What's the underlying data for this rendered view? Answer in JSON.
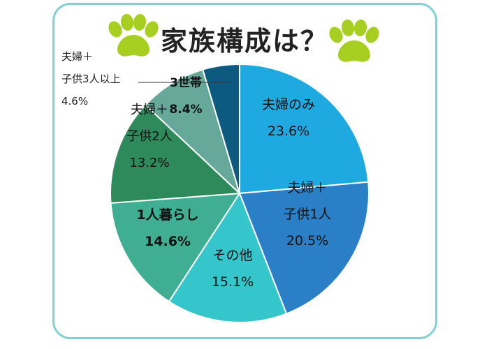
{
  "title": "家族構成は？",
  "icons": {
    "decoration": "paw-print-icon",
    "paw_color": "#a6cf22"
  },
  "chart_data": {
    "type": "pie",
    "title": "家族構成は？",
    "start_angle_deg": 0,
    "direction": "clockwise",
    "legend": "none",
    "slices": [
      {
        "label": [
          "夫婦のみ"
        ],
        "value": 23.6,
        "value_label": "23.6%",
        "color": "#1fa9e1"
      },
      {
        "label": [
          "夫婦＋",
          "子供1人"
        ],
        "value": 20.5,
        "value_label": "20.5%",
        "color": "#2a7fc7"
      },
      {
        "label": [
          "その他"
        ],
        "value": 15.1,
        "value_label": "15.1%",
        "color": "#35c6cc"
      },
      {
        "label": [
          "1人暮らし"
        ],
        "value": 14.6,
        "value_label": "14.6%",
        "color": "#40ae92"
      },
      {
        "label": [
          "夫婦＋",
          "子供2人"
        ],
        "value": 13.2,
        "value_label": "13.2%",
        "color": "#2e8a5a"
      },
      {
        "label": [
          "3世帯"
        ],
        "value": 8.4,
        "value_label": "8.4%",
        "color": "#66a99b"
      },
      {
        "label": [
          "夫婦＋",
          "子供3人以上"
        ],
        "value": 4.6,
        "value_label": "4.6%",
        "color": "#0d5a81"
      }
    ]
  }
}
